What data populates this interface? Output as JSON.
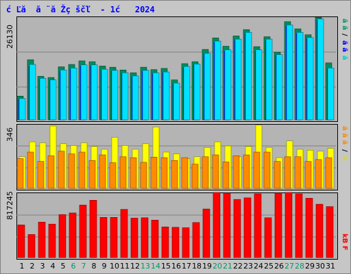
{
  "title": "ć Ľă  ă ¨ă Žç ščľ  - 1ć   2024",
  "right_labels": {
    "panel1": [
      {
        "text": "ă ă",
        "color": "#009966"
      },
      {
        "text": "/",
        "color": "#000000"
      },
      {
        "text": "ă ã",
        "color": "#0000ff"
      },
      {
        "text": "ă",
        "color": "#00cccc"
      }
    ],
    "panel2": [
      {
        "text": "ă ă ă",
        "color": "#ff8800"
      },
      {
        "text": "/",
        "color": "#000000"
      },
      {
        "text": "ă",
        "color": "#dddd00"
      }
    ],
    "panel3": [
      {
        "text": "kB F",
        "color": "#ff0000"
      }
    ]
  },
  "colors": {
    "green": "#008c5a",
    "cyan": "#00e1ff",
    "blue": "#0000ff",
    "yellow": "#ffff00",
    "orange": "#ff8c00",
    "red": "#ff0000",
    "gridline": "#808080",
    "day_normal": "#000000",
    "day_weekend": "#009966"
  },
  "chart_data": [
    {
      "type": "bar",
      "y_max_label": "26130",
      "ylim": [
        0,
        26130
      ],
      "categories": [
        "1",
        "2",
        "3",
        "4",
        "5",
        "6",
        "7",
        "8",
        "9",
        "10",
        "11",
        "12",
        "13",
        "14",
        "15",
        "16",
        "17",
        "18",
        "19",
        "20",
        "21",
        "22",
        "23",
        "24",
        "25",
        "26",
        "27",
        "28",
        "29",
        "30",
        "31"
      ],
      "weekend_days": [
        "6",
        "7",
        "13",
        "14",
        "20",
        "21",
        "27",
        "28"
      ],
      "series": [
        {
          "values": [
            6000,
            15200,
            11000,
            10700,
            13400,
            14000,
            14900,
            14700,
            13600,
            13300,
            12600,
            11900,
            13300,
            12700,
            13000,
            10100,
            14200,
            14700,
            17800,
            20700,
            18600,
            21200,
            22800,
            18500,
            21000,
            17100,
            24800,
            23000,
            21500,
            25900,
            14400
          ],
          "color_key": "green"
        },
        {
          "values": [
            5400,
            14000,
            10500,
            10100,
            12600,
            13100,
            13900,
            13900,
            12800,
            12500,
            11900,
            11100,
            12500,
            11900,
            12100,
            9300,
            13500,
            14100,
            16800,
            19900,
            17700,
            20400,
            22100,
            17700,
            20400,
            16500,
            24000,
            22100,
            20800,
            25500,
            13100
          ],
          "color_key": "cyan"
        },
        {
          "values": [
            5200,
            13600,
            10300,
            10000,
            12300,
            12800,
            13600,
            13600,
            12600,
            12300,
            11700,
            10900,
            12300,
            11700,
            11900,
            9100,
            13200,
            13900,
            16600,
            19600,
            17400,
            20100,
            21900,
            17400,
            20100,
            16300,
            23800,
            21800,
            20600,
            25200,
            12900
          ],
          "color_key": "blue"
        }
      ]
    },
    {
      "type": "bar",
      "y_max_label": "346",
      "ylim": [
        0,
        346
      ],
      "categories": [
        "1",
        "2",
        "3",
        "4",
        "5",
        "6",
        "7",
        "8",
        "9",
        "10",
        "11",
        "12",
        "13",
        "14",
        "15",
        "16",
        "17",
        "18",
        "19",
        "20",
        "21",
        "22",
        "23",
        "24",
        "25",
        "26",
        "27",
        "28",
        "29",
        "30",
        "31"
      ],
      "series": [
        {
          "values": [
            170,
            250,
            245,
            335,
            240,
            230,
            245,
            225,
            210,
            275,
            230,
            210,
            240,
            330,
            195,
            185,
            160,
            170,
            220,
            250,
            228,
            170,
            225,
            340,
            220,
            165,
            255,
            210,
            205,
            200,
            215
          ],
          "color_key": "yellow"
        },
        {
          "values": [
            160,
            195,
            145,
            175,
            200,
            185,
            195,
            150,
            180,
            138,
            170,
            165,
            140,
            168,
            165,
            150,
            165,
            130,
            170,
            180,
            142,
            175,
            180,
            195,
            195,
            145,
            170,
            170,
            145,
            155,
            165
          ],
          "color_key": "orange"
        }
      ]
    },
    {
      "type": "bar",
      "y_max_label": "817245",
      "ylim": [
        0,
        817245
      ],
      "categories": [
        "1",
        "2",
        "3",
        "4",
        "5",
        "6",
        "7",
        "8",
        "9",
        "10",
        "11",
        "12",
        "13",
        "14",
        "15",
        "16",
        "17",
        "18",
        "19",
        "20",
        "21",
        "22",
        "23",
        "24",
        "25",
        "26",
        "27",
        "28",
        "29",
        "30",
        "31"
      ],
      "series": [
        {
          "values": [
            410000,
            290000,
            445000,
            420000,
            540000,
            560000,
            660000,
            720000,
            505000,
            505000,
            605000,
            495000,
            500000,
            470000,
            385000,
            380000,
            375000,
            440000,
            610000,
            840000,
            810000,
            730000,
            750000,
            800000,
            500000,
            810000,
            850000,
            800000,
            745000,
            670000,
            640000
          ],
          "color_key": "red"
        }
      ]
    }
  ]
}
